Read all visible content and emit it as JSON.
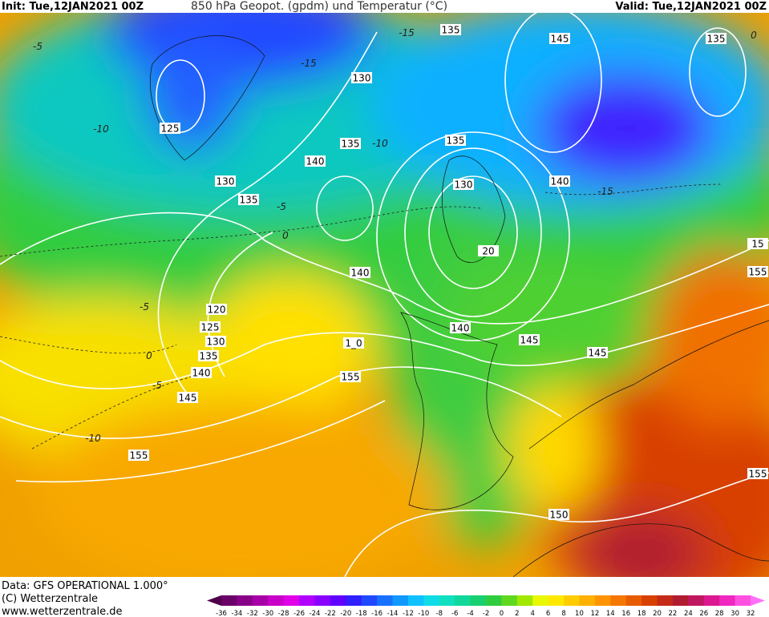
{
  "header": {
    "init": "Init: Tue,12JAN2021 00Z",
    "title": "850 hPa Geopot. (gpdm) und Temperatur (°C)",
    "valid": "Valid: Tue,12JAN2021 00Z"
  },
  "footer": {
    "source": "Data: GFS OPERATIONAL 1.000°",
    "copyright": "(C) Wetterzentrale",
    "url": "www.wetterzentrale.de"
  },
  "color_scale": {
    "labels": [
      -36,
      -34,
      -32,
      -30,
      -28,
      -26,
      -24,
      -22,
      -20,
      -18,
      -16,
      -14,
      -12,
      -10,
      -8,
      -6,
      -4,
      -2,
      0,
      2,
      4,
      6,
      8,
      10,
      12,
      14,
      16,
      18,
      20,
      22,
      24,
      26,
      28,
      30,
      32
    ],
    "colors": [
      "#50004a",
      "#6a0068",
      "#880088",
      "#a800a8",
      "#c800c8",
      "#e000e8",
      "#b000ff",
      "#8800ff",
      "#6000ff",
      "#3020ff",
      "#2048ff",
      "#1870ff",
      "#1098ff",
      "#10c0ff",
      "#10dce8",
      "#10e0c0",
      "#10d89a",
      "#18d070",
      "#30cc40",
      "#60d820",
      "#a0e800",
      "#e8f800",
      "#ffe800",
      "#ffcc00",
      "#ffb000",
      "#ff9400",
      "#f47800",
      "#e85c00",
      "#d84000",
      "#c42c18",
      "#b01c30",
      "#c01860",
      "#dc1890",
      "#f028c0",
      "#ff50e0",
      "#ff70f8"
    ]
  },
  "height_labels": [
    "135",
    "145",
    "135",
    "130",
    "125",
    "135",
    "135",
    "140",
    "130",
    "140",
    "135",
    "130",
    "20",
    "140",
    "120",
    "125",
    "130",
    "140",
    "145",
    "135",
    "145",
    "140",
    "1_0",
    "155",
    "145",
    "155",
    "150",
    "155",
    "155",
    "15"
  ],
  "temperature_labels": [
    -15,
    -15,
    -10,
    -10,
    -15,
    -5,
    -5,
    0,
    -5,
    0,
    -5,
    -10,
    0
  ]
}
